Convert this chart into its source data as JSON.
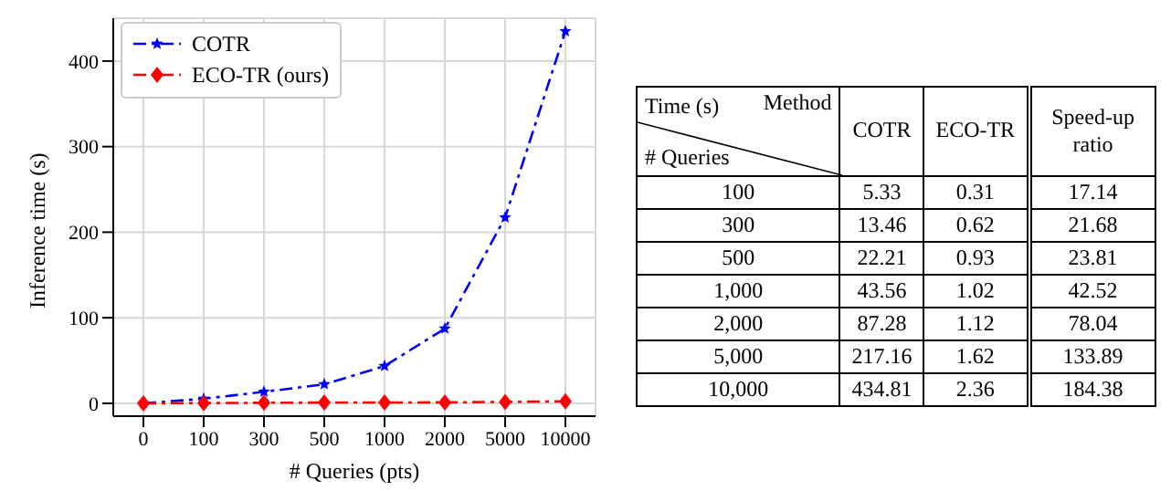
{
  "chart_data": [
    {
      "type": "line",
      "xlabel": "# Queries (pts)",
      "ylabel": "Inference time (s)",
      "categories": [
        "0",
        "100",
        "300",
        "500",
        "1000",
        "2000",
        "5000",
        "10000"
      ],
      "series": [
        {
          "name": "COTR",
          "color": "#0000ff",
          "marker": "star",
          "line_style": "dashed",
          "values": [
            0,
            5.33,
            13.46,
            22.21,
            43.56,
            87.28,
            217.16,
            434.81
          ]
        },
        {
          "name": "ECO-TR (ours)",
          "color": "#ff0000",
          "marker": "diamond",
          "line_style": "dashed",
          "values": [
            0,
            0.31,
            0.62,
            0.93,
            1.02,
            1.12,
            1.62,
            2.36
          ]
        }
      ],
      "ylim": [
        -15,
        450
      ],
      "yticks": [
        0,
        100,
        200,
        300,
        400
      ],
      "grid": true,
      "legend": "top left"
    },
    {
      "type": "other",
      "data_labels": true,
      "annotations": [
        "Time (s)",
        "Method",
        "# Queries"
      ],
      "categories": [
        "100",
        "300",
        "500",
        "1,000",
        "2,000",
        "5,000",
        "10,000"
      ],
      "series": [
        {
          "name": "COTR",
          "values": [
            5.33,
            13.46,
            22.21,
            43.56,
            87.28,
            217.16,
            434.81
          ]
        },
        {
          "name": "ECO-TR",
          "values": [
            0.31,
            0.62,
            0.93,
            1.02,
            1.12,
            1.62,
            2.36
          ]
        },
        {
          "name": "Speed-up ratio",
          "values": [
            17.14,
            21.68,
            23.81,
            42.52,
            78.04,
            133.89,
            184.38
          ]
        }
      ]
    }
  ]
}
